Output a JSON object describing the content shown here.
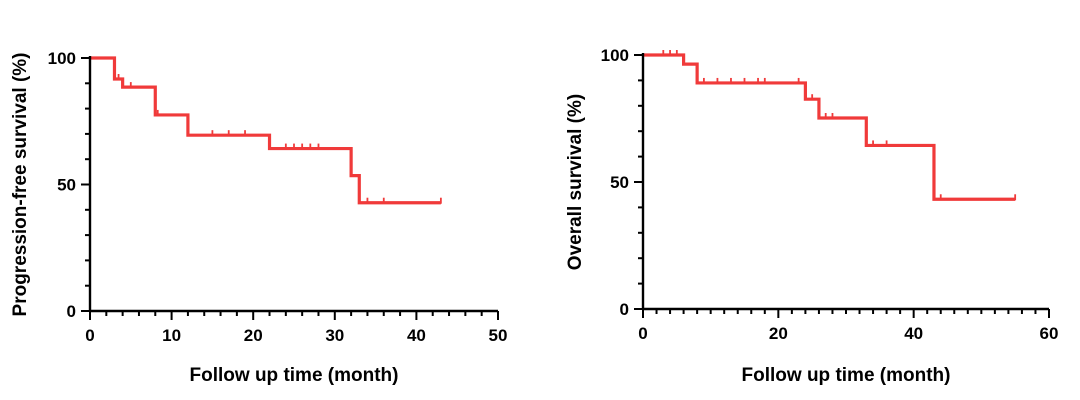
{
  "chart_data": [
    {
      "type": "line",
      "subtype": "kaplan-meier-step",
      "title": "",
      "xlabel": "Follow up time (month)",
      "ylabel": "Progression-free survival (%)",
      "xlim": [
        0,
        50
      ],
      "ylim": [
        0,
        100
      ],
      "x_major_ticks": [
        0,
        10,
        20,
        30,
        40,
        50
      ],
      "x_minor_step": 2,
      "y_major_ticks": [
        0,
        50,
        100
      ],
      "y_minor_step": 10,
      "grid": false,
      "color": "#f03a3a",
      "series": [
        {
          "name": "Progression-free survival",
          "steps": [
            [
              0,
              100
            ],
            [
              3,
              91.7
            ],
            [
              4,
              88.5
            ],
            [
              8,
              77.5
            ],
            [
              12,
              69.5
            ],
            [
              22,
              64.2
            ],
            [
              32,
              53.5
            ],
            [
              33,
              42.8
            ],
            [
              43,
              42.8
            ]
          ],
          "censored_x": [
            3.5,
            5,
            8.3,
            15,
            17,
            19,
            24,
            25,
            26,
            27,
            28,
            34,
            36,
            43
          ]
        }
      ]
    },
    {
      "type": "line",
      "subtype": "kaplan-meier-step",
      "title": "",
      "xlabel": "Follow up time (month)",
      "ylabel": "Overall survival (%)",
      "xlim": [
        0,
        60
      ],
      "ylim": [
        0,
        100
      ],
      "x_major_ticks": [
        0,
        20,
        40,
        60
      ],
      "x_minor_step": 2,
      "y_major_ticks": [
        0,
        50,
        100
      ],
      "y_minor_step": 10,
      "grid": false,
      "color": "#f03a3a",
      "series": [
        {
          "name": "Overall survival",
          "steps": [
            [
              0,
              100
            ],
            [
              6,
              96.4
            ],
            [
              8,
              89
            ],
            [
              24,
              82.6
            ],
            [
              26,
              75.2
            ],
            [
              33,
              64.4
            ],
            [
              43,
              43.2
            ],
            [
              55,
              43.2
            ]
          ],
          "censored_x": [
            3,
            4,
            5,
            9,
            11,
            13,
            15,
            17,
            18,
            23,
            25,
            27,
            28,
            34,
            36,
            44,
            55
          ]
        }
      ]
    }
  ]
}
